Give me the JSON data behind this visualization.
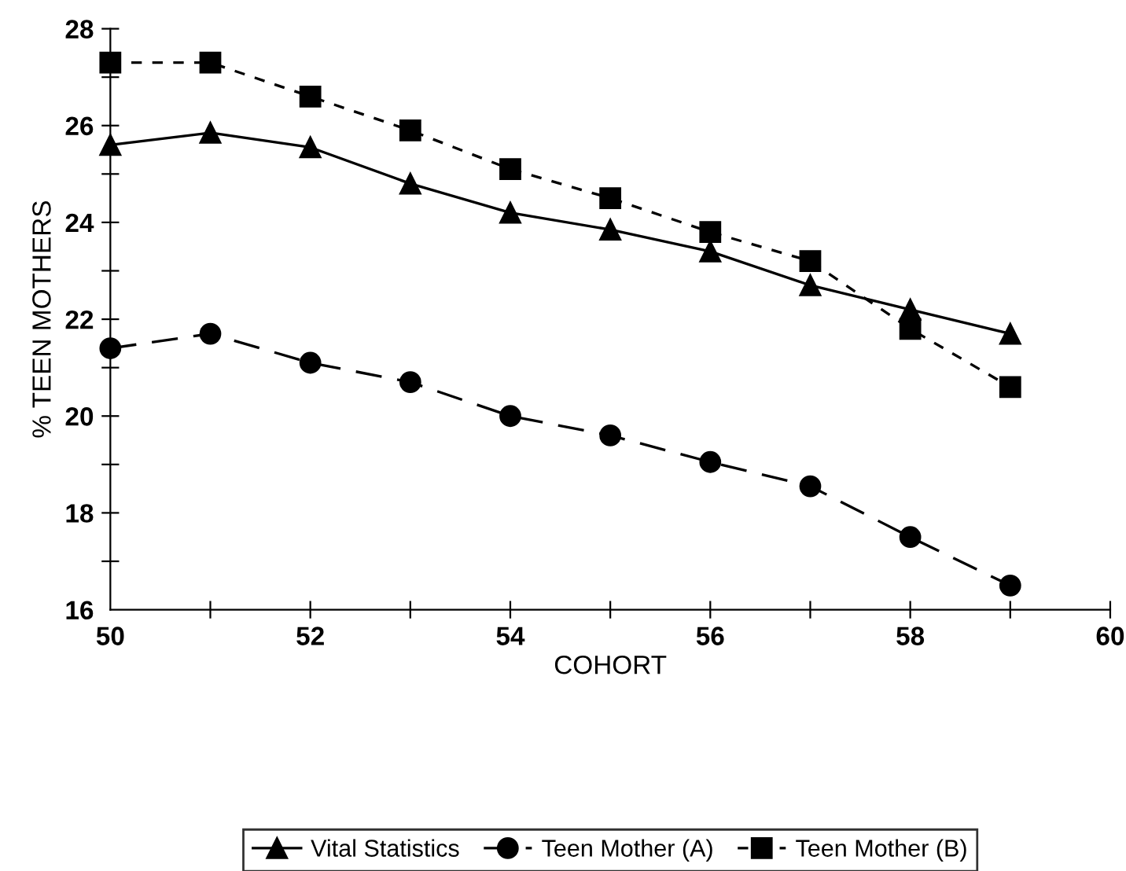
{
  "chart_data": {
    "type": "line",
    "xlabel": "COHORT",
    "ylabel": "% TEEN MOTHERS",
    "x": [
      50,
      51,
      52,
      53,
      54,
      55,
      56,
      57,
      58,
      59
    ],
    "series": [
      {
        "name": "Vital Statistics",
        "color": "#000000",
        "marker": "triangle",
        "line_style": "solid",
        "values": [
          25.6,
          25.85,
          25.55,
          24.8,
          24.2,
          23.85,
          23.4,
          22.7,
          22.2,
          21.7
        ]
      },
      {
        "name": "Teen Mother (A)",
        "color": "#000000",
        "marker": "circle",
        "line_style": "dashed",
        "values": [
          21.4,
          21.7,
          21.1,
          20.7,
          20.0,
          19.6,
          19.05,
          18.55,
          17.5,
          16.5
        ]
      },
      {
        "name": "Teen Mother (B)",
        "color": "#000000",
        "marker": "square",
        "line_style": "dotted",
        "values": [
          27.3,
          27.3,
          26.6,
          25.9,
          25.1,
          24.5,
          23.8,
          23.2,
          21.8,
          20.6
        ]
      }
    ],
    "xlim": [
      50,
      60
    ],
    "ylim": [
      16,
      28
    ],
    "xticks": [
      50,
      {
        "value": 51,
        "label": null
      },
      52,
      {
        "value": 53,
        "label": null
      },
      54,
      {
        "value": 55,
        "label": null
      },
      56,
      {
        "value": 57,
        "label": null
      },
      58,
      {
        "value": 59,
        "label": null
      },
      60
    ],
    "yticks": [
      16,
      {
        "value": 17,
        "label": null
      },
      18,
      {
        "value": 19,
        "label": null
      },
      20,
      {
        "value": 21,
        "label": null
      },
      22,
      {
        "value": 23,
        "label": null
      },
      24,
      {
        "value": 25,
        "label": null
      },
      26,
      {
        "value": 27,
        "label": null
      },
      28
    ],
    "grid": false,
    "legend": "bottom"
  }
}
